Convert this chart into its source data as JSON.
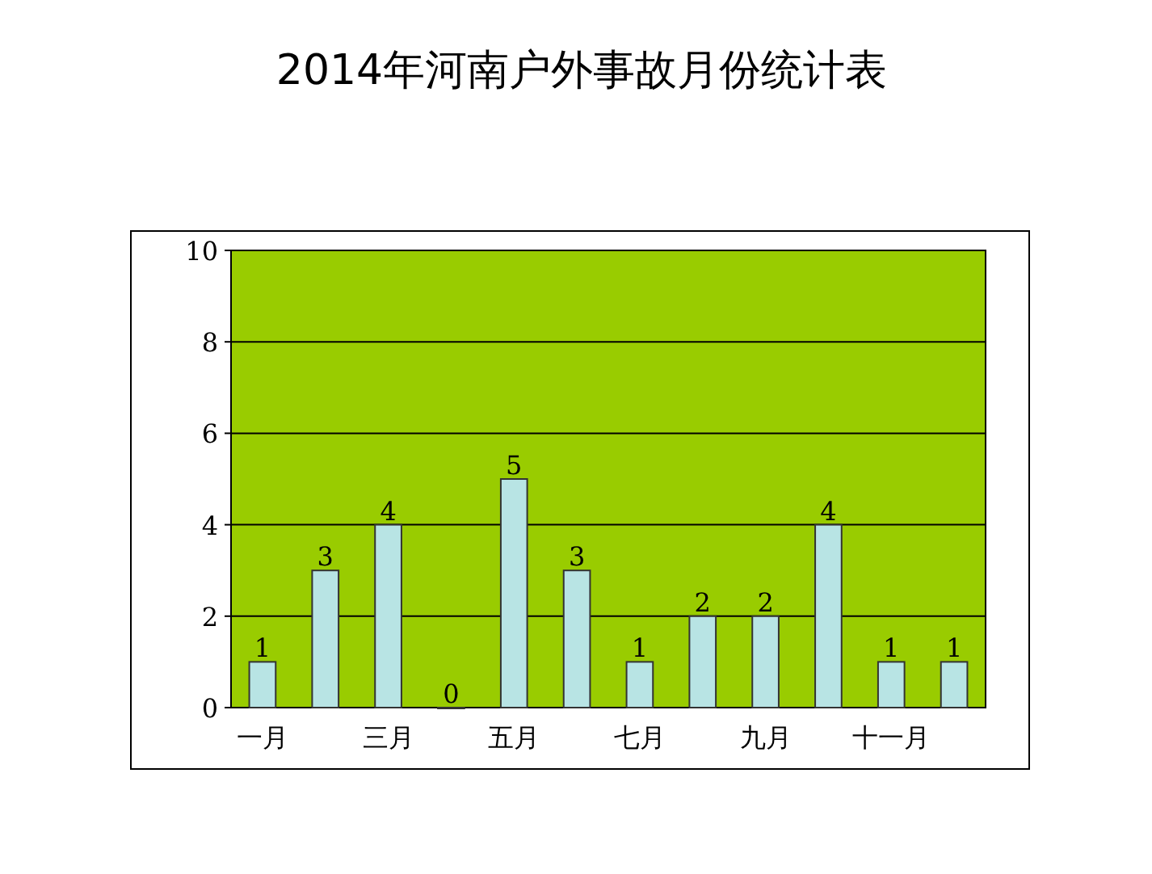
{
  "chart_data": {
    "type": "bar",
    "title": "2014年河南户外事故月份统计表",
    "categories": [
      "一月",
      null,
      "三月",
      null,
      "五月",
      null,
      "七月",
      null,
      "九月",
      null,
      "十一月",
      null
    ],
    "values": [
      1,
      3,
      4,
      0,
      5,
      3,
      1,
      2,
      2,
      4,
      1,
      1
    ],
    "color": "#b8e4e4",
    "ylim": [
      0,
      10
    ],
    "yticks": [
      0,
      2,
      4,
      6,
      8,
      10
    ],
    "grid": "y",
    "data_labels": true
  }
}
